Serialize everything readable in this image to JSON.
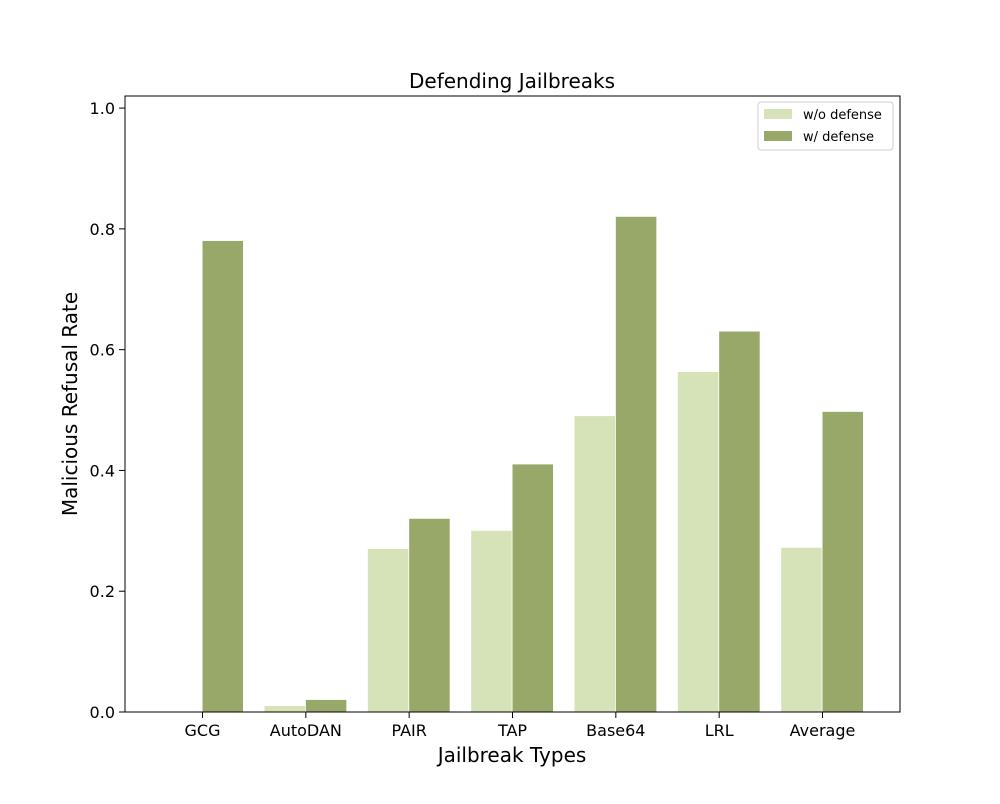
{
  "colors": {
    "wo_defense": "#d6e3b8",
    "w_defense": "#97a869",
    "axis": "#000000",
    "legend_border": "#cccccc"
  },
  "chart_data": {
    "type": "bar",
    "title": "Defending Jailbreaks",
    "xlabel": "Jailbreak Types",
    "ylabel": "Malicious Refusal Rate",
    "categories": [
      "GCG",
      "AutoDAN",
      "PAIR",
      "TAP",
      "Base64",
      "LRL",
      "Average"
    ],
    "series": [
      {
        "name": "w/o defense",
        "values": [
          0.0,
          0.01,
          0.27,
          0.3,
          0.49,
          0.563,
          0.272
        ]
      },
      {
        "name": "w/ defense",
        "values": [
          0.78,
          0.02,
          0.32,
          0.41,
          0.82,
          0.63,
          0.497
        ]
      }
    ],
    "ylim": [
      0,
      1.02
    ],
    "yticks": [
      0.0,
      0.2,
      0.4,
      0.6,
      0.8,
      1.0
    ],
    "ytick_labels": [
      "0.0",
      "0.2",
      "0.4",
      "0.6",
      "0.8",
      "1.0"
    ],
    "grid": false,
    "legend_position": "top-right"
  }
}
